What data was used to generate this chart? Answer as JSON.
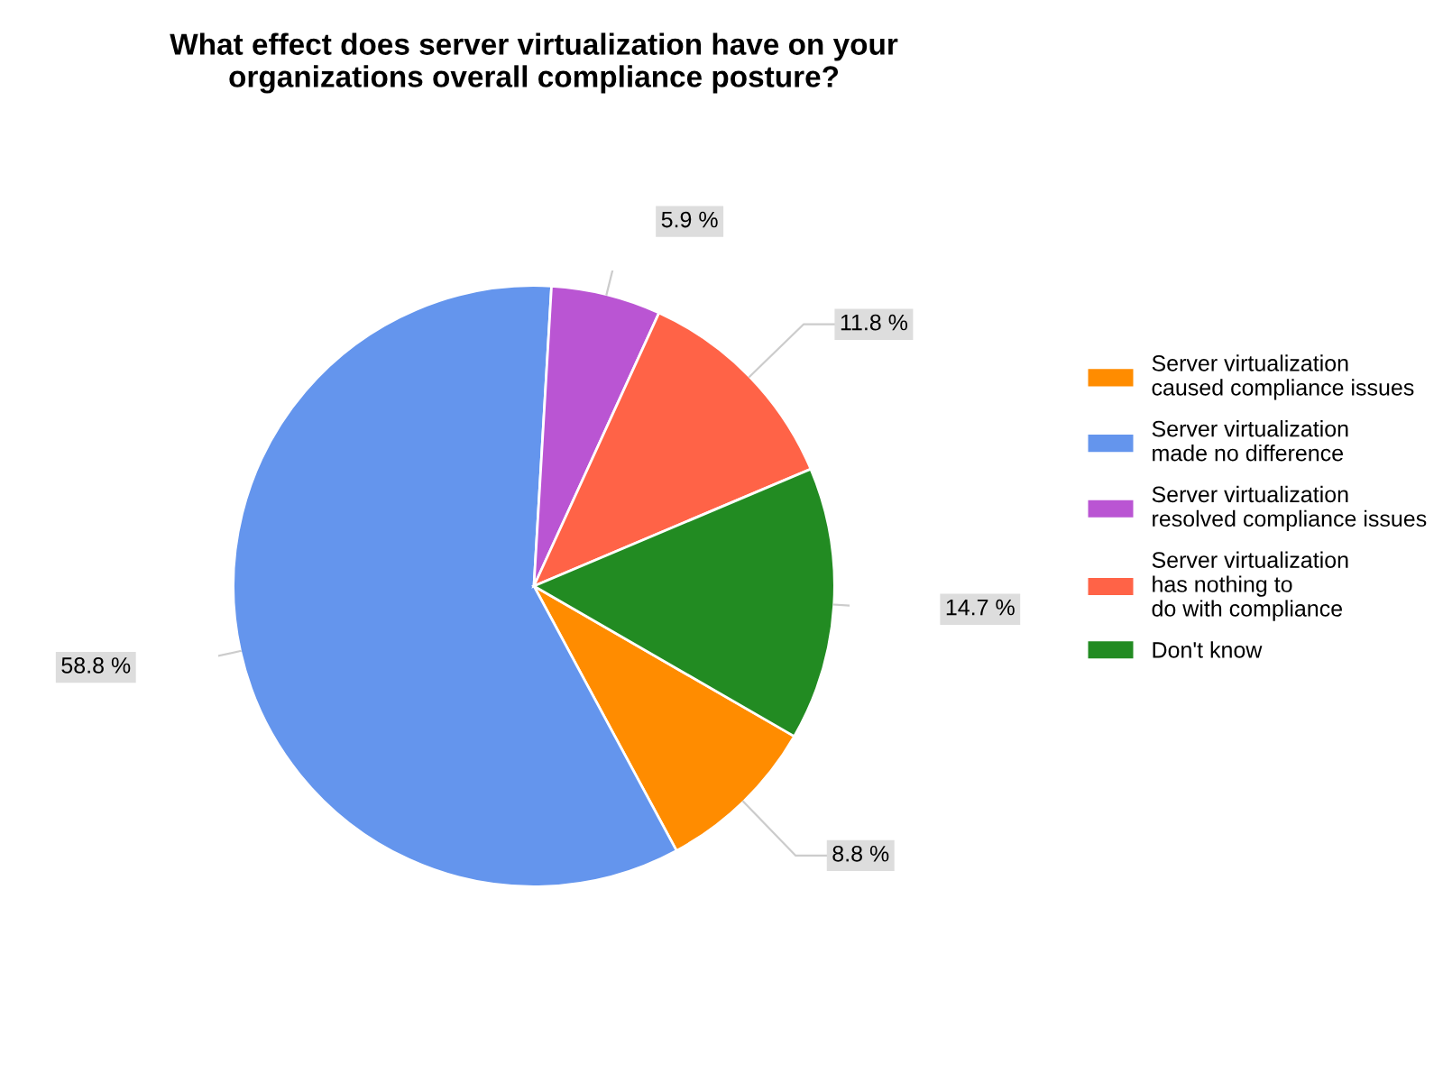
{
  "chart_data": {
    "type": "pie",
    "title": "What effect does server virtualization have on your\norganizations overall compliance posture?",
    "categories": [
      "Server virtualization\ncaused compliance issues",
      "Server virtualization\nmade no difference",
      "Server virtualization\nresolved compliance issues",
      "Server virtualization\nhas nothing to\ndo with compliance",
      "Don't know"
    ],
    "values": [
      8.8,
      58.8,
      5.9,
      11.8,
      14.7
    ],
    "colors": [
      "#ff8c00",
      "#6495ed",
      "#ba55d3",
      "#ff6347",
      "#228b22"
    ],
    "value_labels": [
      "8.8 %",
      "58.8 %",
      "5.9 %",
      "11.8 %",
      "14.7 %"
    ],
    "legend": "right"
  }
}
